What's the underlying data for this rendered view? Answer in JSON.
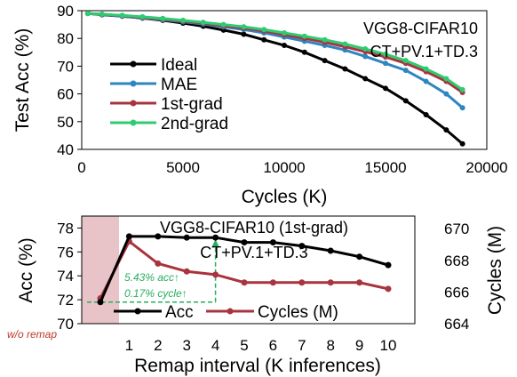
{
  "colors": {
    "ideal": "#000000",
    "mae": "#2e86c1",
    "first_grad": "#a9343f",
    "second_grad": "#2ecc71",
    "acc": "#000000",
    "cycles": "#a9343f",
    "shade": "#e8c4c8",
    "annotation": "#27ae60",
    "wo_remap": "#a9343f"
  },
  "chart_data": [
    {
      "type": "line",
      "title": "VGG8-CIFAR10",
      "subtitle": "CT+PV.1+TD.3",
      "xlabel": "Cycles (K)",
      "ylabel": "Test Acc (%)",
      "xlim": [
        0,
        20000
      ],
      "ylim": [
        40,
        90
      ],
      "xticks": [
        "0",
        "5000",
        "10000",
        "15000",
        "20000"
      ],
      "yticks": [
        "40",
        "50",
        "60",
        "70",
        "80",
        "90"
      ],
      "legend_position": "left",
      "x": [
        300,
        1000,
        2000,
        3000,
        4000,
        5000,
        6000,
        7000,
        8000,
        9000,
        10000,
        11000,
        12000,
        13000,
        14000,
        15000,
        16000,
        17000,
        18000,
        18800
      ],
      "series": [
        {
          "name": "Ideal",
          "color_key": "ideal",
          "values": [
            89,
            88.5,
            88,
            87.3,
            86.5,
            85.5,
            84.4,
            83,
            81.5,
            79.5,
            77.5,
            75,
            72,
            69,
            65.5,
            62,
            57.5,
            52.5,
            47,
            42
          ]
        },
        {
          "name": "MAE",
          "color_key": "mae",
          "values": [
            89,
            88.6,
            88,
            87.4,
            86.7,
            86,
            85.2,
            84.2,
            83.2,
            82,
            80.5,
            79,
            77.5,
            75.8,
            73.5,
            71,
            68.5,
            64.5,
            60,
            55
          ]
        },
        {
          "name": "1st-grad",
          "color_key": "first_grad",
          "values": [
            89,
            88.7,
            88.2,
            87.6,
            87,
            86.2,
            85.5,
            84.6,
            83.7,
            82.7,
            81.3,
            80,
            78.6,
            77,
            75.2,
            73.3,
            71,
            68,
            64.5,
            60.5
          ]
        },
        {
          "name": "2nd-grad",
          "color_key": "second_grad",
          "values": [
            89,
            88.7,
            88.3,
            87.8,
            87.2,
            86.5,
            85.8,
            85,
            84.2,
            83.2,
            82,
            80.8,
            79.5,
            78,
            76.2,
            74.3,
            72,
            69,
            65.5,
            61.5
          ]
        }
      ]
    },
    {
      "type": "line",
      "title": "VGG8-CIFAR10 (1st-grad)",
      "subtitle": "CT+PV.1+TD.3",
      "xlabel": "Remap interval (K inferences)",
      "ylabel": "Acc (%)",
      "y2label": "Cycles (M)",
      "categories": [
        "w/o remap",
        "1",
        "2",
        "3",
        "4",
        "5",
        "6",
        "7",
        "8",
        "9",
        "10"
      ],
      "xticks": [
        "1",
        "2",
        "3",
        "4",
        "5",
        "6",
        "7",
        "8",
        "9",
        "10"
      ],
      "ylim": [
        70,
        79
      ],
      "yticks": [
        "70",
        "72",
        "74",
        "76",
        "78"
      ],
      "y2lim": [
        664,
        670.8
      ],
      "y2ticks": [
        "664",
        "666",
        "668",
        "670"
      ],
      "legend_position": "bottom",
      "series": [
        {
          "name": "Acc",
          "axis": "left",
          "color_key": "acc",
          "values": [
            71.8,
            77.3,
            77.3,
            77.2,
            77.2,
            76.8,
            76.8,
            76.5,
            76.1,
            75.6,
            74.9
          ]
        },
        {
          "name": "Cycles (M)",
          "axis": "right",
          "color_key": "cycles",
          "values": [
            665.6,
            669.2,
            667.8,
            667.3,
            667.1,
            666.6,
            666.6,
            666.6,
            666.6,
            666.6,
            666.2
          ]
        }
      ],
      "annotations": {
        "acc_gain": "5.43% acc↑",
        "cycle_gain": "0.17% cycle↑",
        "wo_remap": "w/o remap"
      }
    }
  ]
}
